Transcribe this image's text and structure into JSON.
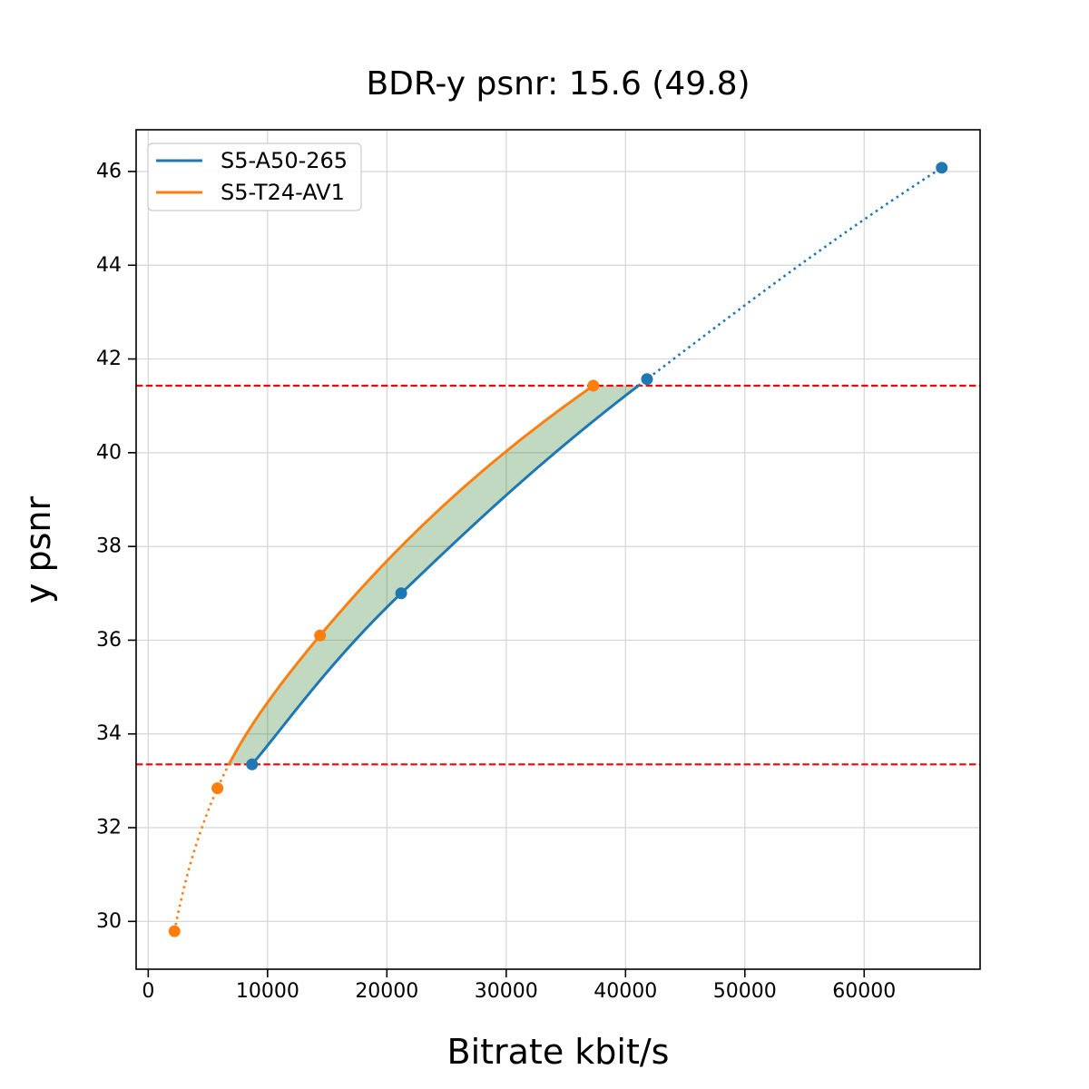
{
  "figure": {
    "title": "BDR-y psnr: 15.6 (49.8)",
    "xlabel": "Bitrate kbit/s",
    "ylabel": "y psnr"
  },
  "legend": {
    "position": "upper left",
    "items": [
      {
        "label": "S5-A50-265",
        "color": "#1f77b4"
      },
      {
        "label": "S5-T24-AV1",
        "color": "#ff7f0e"
      }
    ]
  },
  "chart_data": {
    "type": "line",
    "title": "BDR-y psnr: 15.6 (49.8)",
    "subtitle_meaning": "BD-rate 15.6 (49.8) shown in title only",
    "xlabel": "Bitrate kbit/s",
    "ylabel": "y psnr",
    "xlim": [
      -1015,
      69715
    ],
    "ylim": [
      28.98,
      46.89
    ],
    "xticks": [
      0,
      10000,
      20000,
      30000,
      40000,
      50000,
      60000
    ],
    "yticks": [
      30,
      32,
      34,
      36,
      38,
      40,
      42,
      44,
      46
    ],
    "grid": true,
    "grid_color": "#d5d5d5",
    "legend_position": "upper left",
    "interpolation": "pchip-logx",
    "series": [
      {
        "name": "S5-A50-265",
        "color": "#1f77b4",
        "points": [
          [
            8700,
            33.35
          ],
          [
            21200,
            37.0
          ],
          [
            41800,
            41.57
          ],
          [
            66500,
            46.08
          ]
        ]
      },
      {
        "name": "S5-T24-AV1",
        "color": "#ff7f0e",
        "points": [
          [
            2200,
            29.79
          ],
          [
            5800,
            32.84
          ],
          [
            14400,
            36.1
          ],
          [
            37300,
            41.43
          ]
        ]
      }
    ],
    "overlap_bounds": {
      "psnr_low": 33.35,
      "psnr_high": 41.43,
      "line_color": "#ff0000",
      "line_style": "dashed"
    },
    "shaded_region": {
      "between": [
        "S5-T24-AV1",
        "S5-A50-265"
      ],
      "fill_color": "#227822",
      "alpha": 0.28
    }
  }
}
